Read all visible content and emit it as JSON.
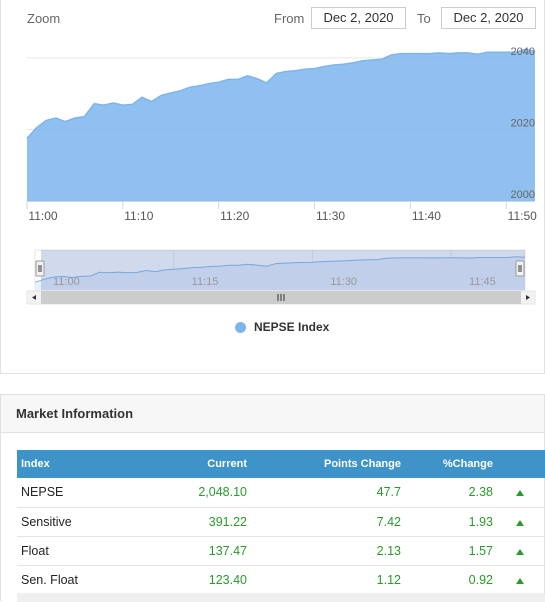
{
  "zoom": {
    "label": "Zoom"
  },
  "range": {
    "from_label": "From",
    "from_value": "Dec 2, 2020",
    "to_label": "To",
    "to_value": "Dec 2, 2020"
  },
  "chart_data": {
    "type": "area",
    "series": [
      {
        "name": "NEPSE Index",
        "color": "#7cb5ec"
      }
    ],
    "x": [
      0,
      1,
      2,
      3,
      4,
      5,
      6,
      7,
      8,
      9,
      10,
      11,
      12,
      13,
      14,
      15,
      16,
      17,
      18,
      19,
      20,
      21,
      22,
      23,
      24,
      25,
      26,
      27,
      28,
      29,
      30,
      31,
      32,
      33,
      34,
      35,
      36,
      37,
      38,
      39,
      40,
      41,
      42,
      43,
      44,
      45,
      46,
      47,
      48,
      49,
      50,
      51,
      52,
      53
    ],
    "values": [
      2017.5,
      2020.5,
      2022.5,
      2023.2,
      2022.2,
      2023.2,
      2023.6,
      2027.2,
      2026.8,
      2027.4,
      2026.8,
      2027.0,
      2029.0,
      2027.8,
      2029.5,
      2030.2,
      2030.8,
      2031.8,
      2032.2,
      2032.8,
      2033.2,
      2034.0,
      2034.0,
      2035.0,
      2034.2,
      2033.0,
      2035.6,
      2036.2,
      2036.4,
      2036.8,
      2037.0,
      2037.6,
      2038.0,
      2038.2,
      2038.6,
      2039.2,
      2039.4,
      2039.6,
      2040.8,
      2041.2,
      2041.2,
      2041.2,
      2041.2,
      2041.4,
      2041.2,
      2041.4,
      2041.4,
      2041.0,
      2041.6,
      2041.6,
      2041.6,
      2041.6,
      2042.4,
      2041.8
    ],
    "xlabels": [
      "11:00",
      "11:10",
      "11:20",
      "11:30",
      "11:40",
      "11:50"
    ],
    "xlabel_positions_min": [
      0,
      10,
      20,
      30,
      40,
      50
    ],
    "yticks": [
      2000,
      2020,
      2040
    ],
    "ylim": [
      2000,
      2045
    ],
    "navigator_labels": [
      "11:00",
      "11:15",
      "11:30",
      "11:45"
    ],
    "navigator_positions_min": [
      0,
      15,
      30,
      45
    ]
  },
  "legend": {
    "label": "NEPSE Index",
    "color": "#7cb5ec"
  },
  "market": {
    "title": "Market Information",
    "headers": [
      "Index",
      "Current",
      "Points Change",
      "%Change"
    ],
    "rows": [
      {
        "name": "NEPSE",
        "current": "2,048.10",
        "points": "47.7",
        "pct": "2.38"
      },
      {
        "name": "Sensitive",
        "current": "391.22",
        "points": "7.42",
        "pct": "1.93"
      },
      {
        "name": "Float",
        "current": "137.47",
        "points": "2.13",
        "pct": "1.57"
      },
      {
        "name": "Sen. Float",
        "current": "123.40",
        "points": "1.12",
        "pct": "0.92"
      }
    ]
  }
}
